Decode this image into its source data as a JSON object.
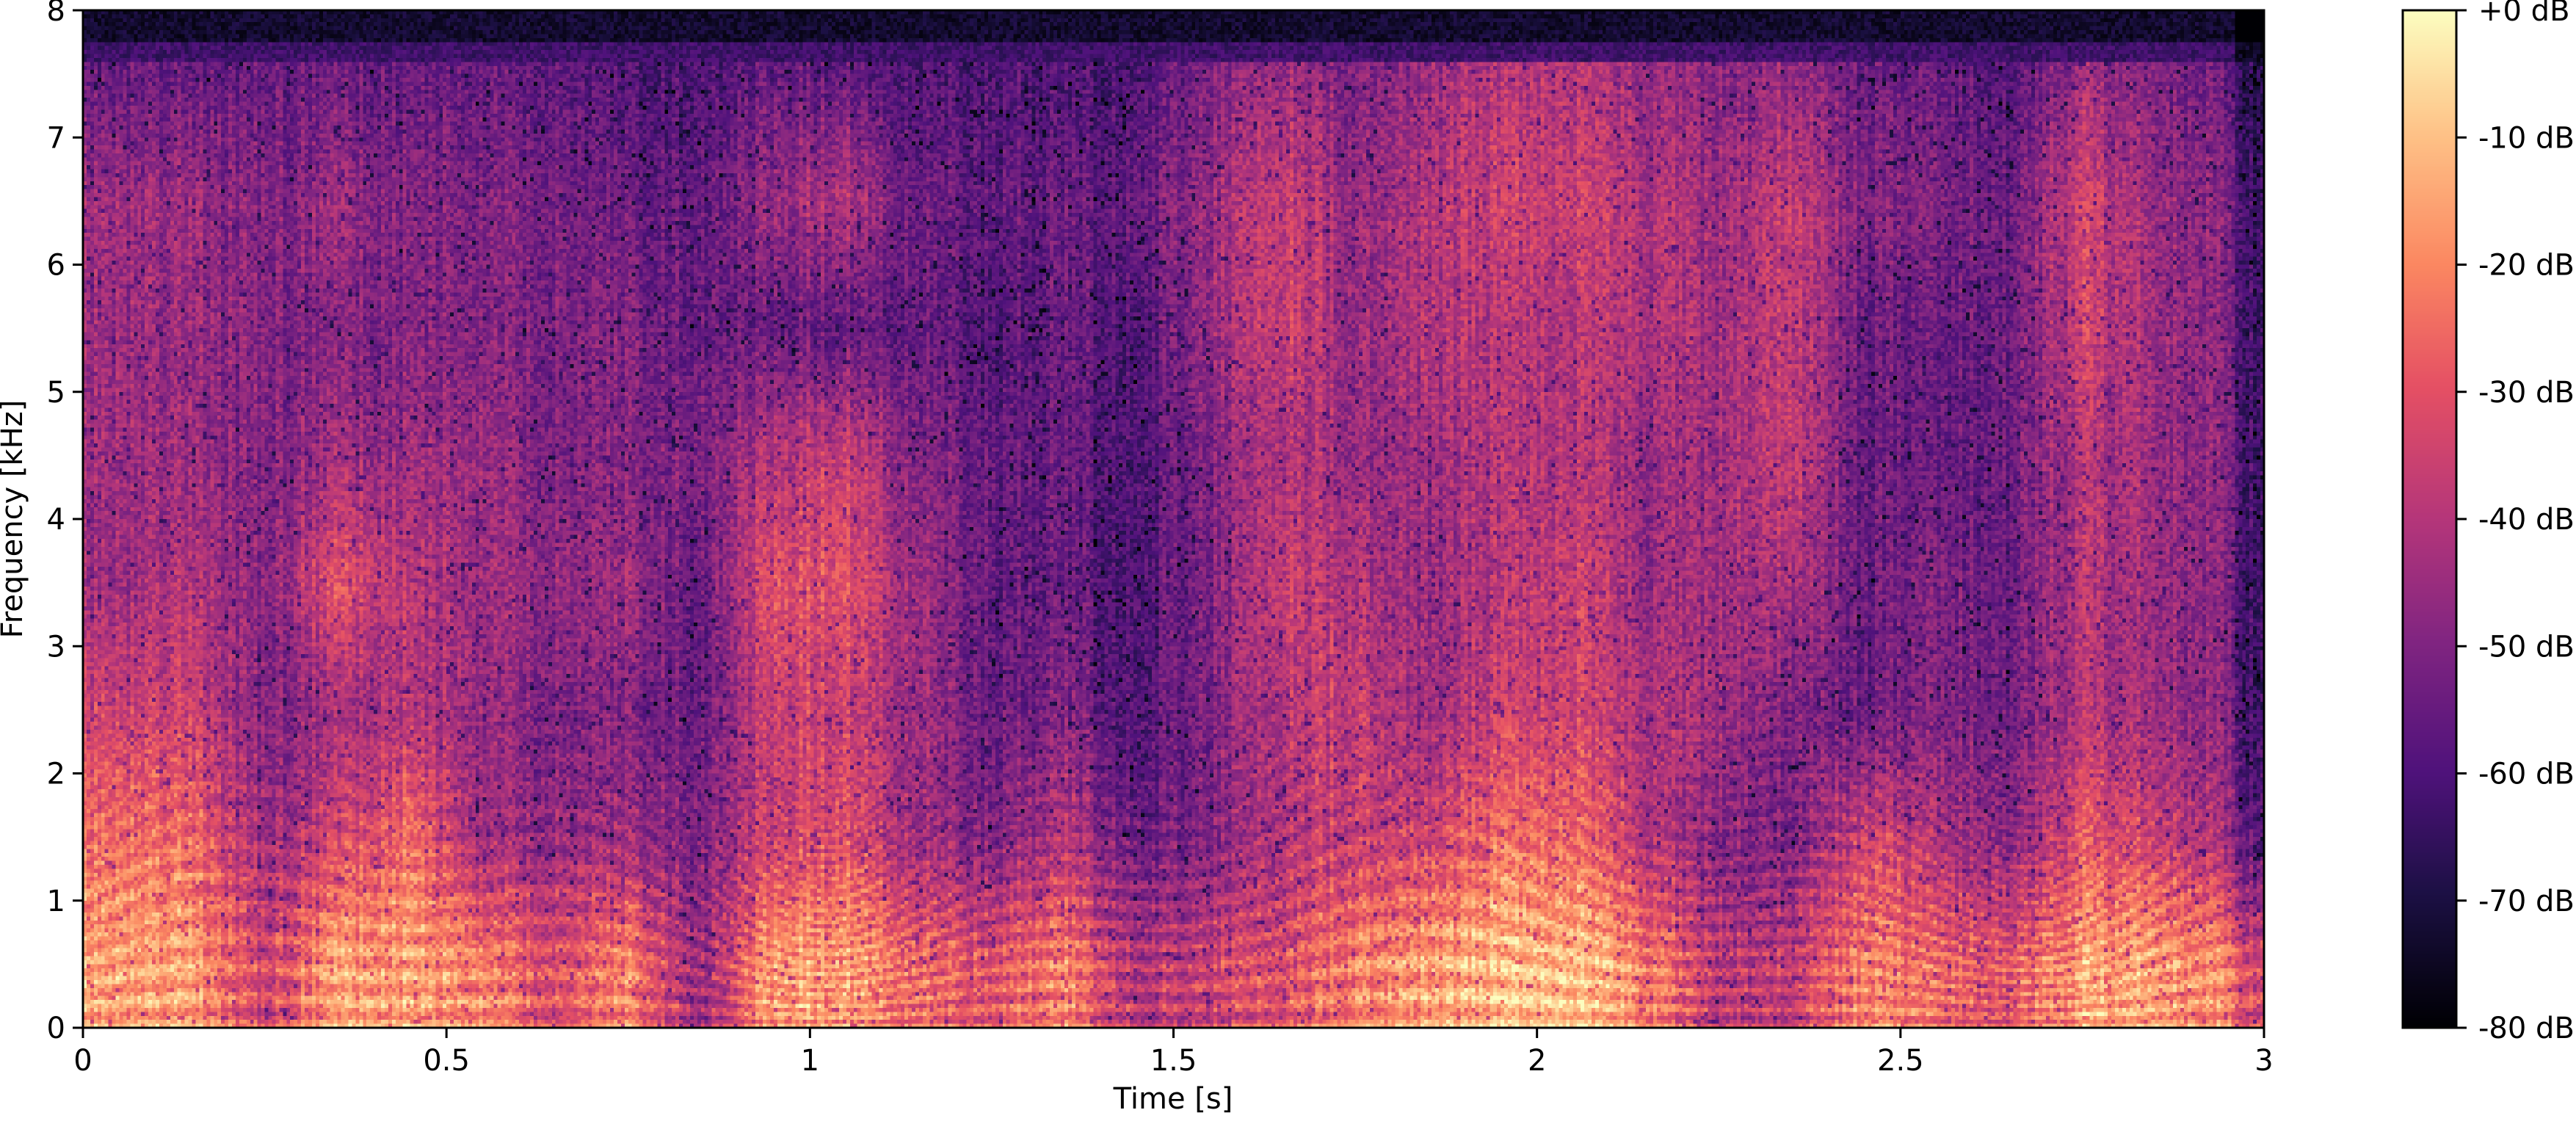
{
  "chart_data": {
    "type": "heatmap",
    "title": "",
    "xlabel": "Time [s]",
    "ylabel": "Frequency [kHz]",
    "xlim": [
      0,
      3
    ],
    "ylim": [
      0,
      8
    ],
    "x_ticks": [
      "0",
      "0.5",
      "1",
      "1.5",
      "2",
      "2.5",
      "3"
    ],
    "x_tick_values": [
      0,
      0.5,
      1,
      1.5,
      2,
      2.5,
      3
    ],
    "y_ticks": [
      "0",
      "1",
      "2",
      "3",
      "4",
      "5",
      "6",
      "7",
      "8"
    ],
    "y_tick_values": [
      0,
      1,
      2,
      3,
      4,
      5,
      6,
      7,
      8
    ],
    "colormap": "magma",
    "color_range_db": [
      -80,
      0
    ],
    "colorbar": {
      "position": "right",
      "ticks": [
        "+0 dB",
        "-10 dB",
        "-20 dB",
        "-30 dB",
        "-40 dB",
        "-50 dB",
        "-60 dB",
        "-70 dB",
        "-80 dB"
      ],
      "tick_values": [
        0,
        -10,
        -20,
        -30,
        -40,
        -50,
        -60,
        -70,
        -80
      ]
    },
    "grid": false,
    "approx_level_db": {
      "time_bins_s": [
        0.0,
        0.1,
        0.2,
        0.3,
        0.4,
        0.5,
        0.6,
        0.7,
        0.8,
        0.9,
        1.0,
        1.1,
        1.2,
        1.3,
        1.4,
        1.5,
        1.6,
        1.7,
        1.8,
        1.9,
        2.0,
        2.1,
        2.2,
        2.3,
        2.4,
        2.5,
        2.6,
        2.7,
        2.8,
        2.9
      ],
      "freq_bands_khz": [
        "0-1",
        "1-2",
        "2-3",
        "3-4",
        "4-5",
        "5-6",
        "6-7",
        "7-8"
      ],
      "values": [
        [
          -15,
          -25,
          -35,
          -45,
          -45,
          -45,
          -45,
          -55
        ],
        [
          -15,
          -25,
          -35,
          -40,
          -45,
          -45,
          -45,
          -55
        ],
        [
          -35,
          -45,
          -50,
          -50,
          -50,
          -50,
          -50,
          -55
        ],
        [
          -15,
          -35,
          -45,
          -30,
          -45,
          -50,
          -45,
          -55
        ],
        [
          -15,
          -25,
          -40,
          -40,
          -45,
          -50,
          -50,
          -55
        ],
        [
          -20,
          -45,
          -45,
          -45,
          -45,
          -50,
          -50,
          -55
        ],
        [
          -30,
          -45,
          -50,
          -45,
          -50,
          -50,
          -50,
          -55
        ],
        [
          -20,
          -45,
          -50,
          -45,
          -50,
          -50,
          -55,
          -60
        ],
        [
          -45,
          -50,
          -55,
          -55,
          -50,
          -55,
          -55,
          -60
        ],
        [
          -15,
          -35,
          -35,
          -30,
          -40,
          -55,
          -45,
          -55
        ],
        [
          -15,
          -30,
          -35,
          -30,
          -35,
          -55,
          -40,
          -55
        ],
        [
          -25,
          -45,
          -45,
          -45,
          -50,
          -55,
          -55,
          -60
        ],
        [
          -30,
          -50,
          -55,
          -55,
          -55,
          -60,
          -55,
          -60
        ],
        [
          -20,
          -40,
          -50,
          -55,
          -55,
          -55,
          -55,
          -60
        ],
        [
          -40,
          -55,
          -60,
          -60,
          -60,
          -60,
          -55,
          -60
        ],
        [
          -35,
          -50,
          -50,
          -50,
          -50,
          -45,
          -45,
          -50
        ],
        [
          -30,
          -40,
          -40,
          -35,
          -40,
          -35,
          -35,
          -45
        ],
        [
          -20,
          -35,
          -35,
          -40,
          -45,
          -45,
          -45,
          -50
        ],
        [
          -15,
          -35,
          -45,
          -45,
          -45,
          -40,
          -40,
          -45
        ],
        [
          -10,
          -25,
          -35,
          -40,
          -40,
          -40,
          -35,
          -40
        ],
        [
          -10,
          -25,
          -35,
          -35,
          -40,
          -40,
          -35,
          -40
        ],
        [
          -20,
          -40,
          -40,
          -45,
          -45,
          -40,
          -40,
          -45
        ],
        [
          -40,
          -50,
          -45,
          -45,
          -45,
          -45,
          -45,
          -50
        ],
        [
          -35,
          -50,
          -50,
          -40,
          -35,
          -35,
          -35,
          -45
        ],
        [
          -20,
          -35,
          -55,
          -55,
          -55,
          -55,
          -50,
          -55
        ],
        [
          -25,
          -40,
          -50,
          -50,
          -55,
          -55,
          -50,
          -55
        ],
        [
          -30,
          -50,
          -55,
          -55,
          -55,
          -55,
          -55,
          -60
        ],
        [
          -15,
          -30,
          -40,
          -40,
          -40,
          -35,
          -35,
          -45
        ],
        [
          -15,
          -35,
          -45,
          -45,
          -45,
          -45,
          -45,
          -50
        ],
        [
          -20,
          -45,
          -50,
          -50,
          -50,
          -50,
          -50,
          -55
        ]
      ]
    }
  }
}
